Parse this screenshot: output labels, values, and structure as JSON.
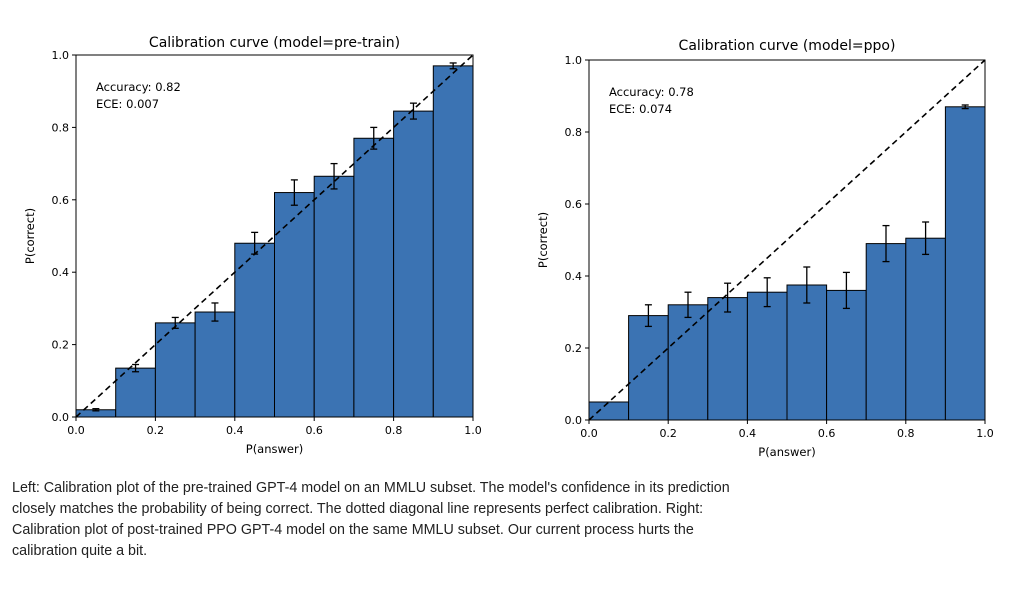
{
  "chart_data": [
    {
      "type": "bar",
      "title": "Calibration curve (model=pre-train)",
      "xlabel": "P(answer)",
      "ylabel": "P(correct)",
      "xlim": [
        0.0,
        1.0
      ],
      "ylim": [
        0.0,
        1.0
      ],
      "ticks": [
        "0.0",
        "0.2",
        "0.4",
        "0.6",
        "0.8",
        "1.0"
      ],
      "bin_edges": [
        0.0,
        0.1,
        0.2,
        0.3,
        0.4,
        0.5,
        0.6,
        0.7,
        0.8,
        0.9,
        1.0
      ],
      "values": [
        0.02,
        0.135,
        0.26,
        0.29,
        0.48,
        0.62,
        0.665,
        0.77,
        0.845,
        0.97
      ],
      "errors": [
        0.003,
        0.01,
        0.015,
        0.025,
        0.03,
        0.035,
        0.035,
        0.03,
        0.022,
        0.008
      ],
      "diagonal": true,
      "annotations": [
        "Accuracy: 0.82",
        "ECE: 0.007"
      ],
      "grid": false,
      "bar_color": "#3b73b3"
    },
    {
      "type": "bar",
      "title": "Calibration curve (model=ppo)",
      "xlabel": "P(answer)",
      "ylabel": "P(correct)",
      "xlim": [
        0.0,
        1.0
      ],
      "ylim": [
        0.0,
        1.0
      ],
      "ticks": [
        "0.0",
        "0.2",
        "0.4",
        "0.6",
        "0.8",
        "1.0"
      ],
      "bin_edges": [
        0.0,
        0.1,
        0.2,
        0.3,
        0.4,
        0.5,
        0.6,
        0.7,
        0.8,
        0.9,
        1.0
      ],
      "values": [
        0.05,
        0.29,
        0.32,
        0.34,
        0.355,
        0.375,
        0.36,
        0.49,
        0.505,
        0.87
      ],
      "errors": [
        0.0,
        0.03,
        0.035,
        0.04,
        0.04,
        0.05,
        0.05,
        0.05,
        0.045,
        0.005
      ],
      "diagonal": true,
      "annotations": [
        "Accuracy: 0.78",
        "ECE: 0.074"
      ],
      "grid": false,
      "bar_color": "#3b73b3"
    }
  ],
  "caption": "Left: Calibration plot of the pre-trained GPT-4 model on an MMLU subset. The model's confidence in its prediction closely matches the probability of being correct. The dotted diagonal line represents perfect calibration. Right: Calibration plot of post-trained PPO GPT-4 model on the same MMLU subset. Our current process hurts the calibration quite a bit."
}
